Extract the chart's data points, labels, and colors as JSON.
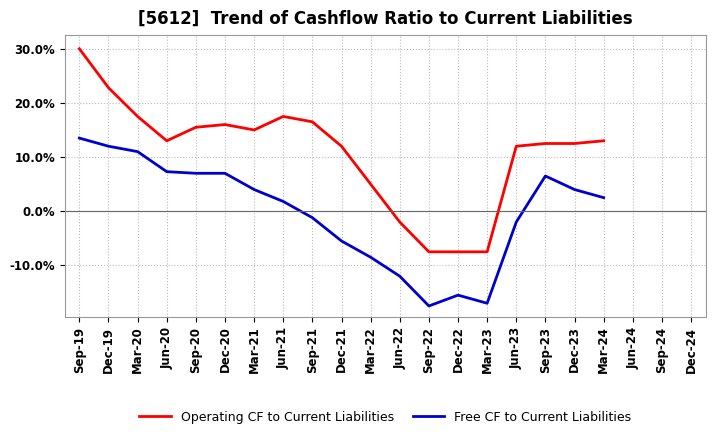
{
  "title": "[5612]  Trend of Cashflow Ratio to Current Liabilities",
  "x_labels": [
    "Sep-19",
    "Dec-19",
    "Mar-20",
    "Jun-20",
    "Sep-20",
    "Dec-20",
    "Mar-21",
    "Jun-21",
    "Sep-21",
    "Dec-21",
    "Mar-22",
    "Jun-22",
    "Sep-22",
    "Dec-22",
    "Mar-23",
    "Jun-23",
    "Sep-23",
    "Dec-23",
    "Mar-24",
    "Jun-24",
    "Sep-24",
    "Dec-24"
  ],
  "operating_cf": [
    0.3,
    0.228,
    0.175,
    0.13,
    0.155,
    0.16,
    0.15,
    0.175,
    0.165,
    0.12,
    0.05,
    -0.02,
    -0.075,
    -0.075,
    -0.075,
    0.12,
    0.125,
    0.125,
    0.13,
    null,
    null,
    null
  ],
  "free_cf": [
    0.135,
    0.12,
    0.11,
    0.073,
    0.07,
    0.07,
    0.04,
    0.018,
    -0.012,
    -0.055,
    -0.085,
    -0.12,
    -0.175,
    -0.155,
    -0.17,
    -0.02,
    0.065,
    0.04,
    0.025,
    null,
    null,
    null
  ],
  "operating_color": "#FF0000",
  "free_color": "#0000CC",
  "ylim": [
    -0.195,
    0.325
  ],
  "yticks": [
    -0.1,
    0.0,
    0.1,
    0.2,
    0.3
  ],
  "ytick_labels": [
    "-10.0%",
    "0.0%",
    "10.0%",
    "20.0%",
    "30.0%"
  ],
  "legend_operating": "Operating CF to Current Liabilities",
  "legend_free": "Free CF to Current Liabilities",
  "background_color": "#FFFFFF",
  "grid_color": "#BBBBBB",
  "title_fontsize": 12,
  "tick_fontsize": 8.5
}
